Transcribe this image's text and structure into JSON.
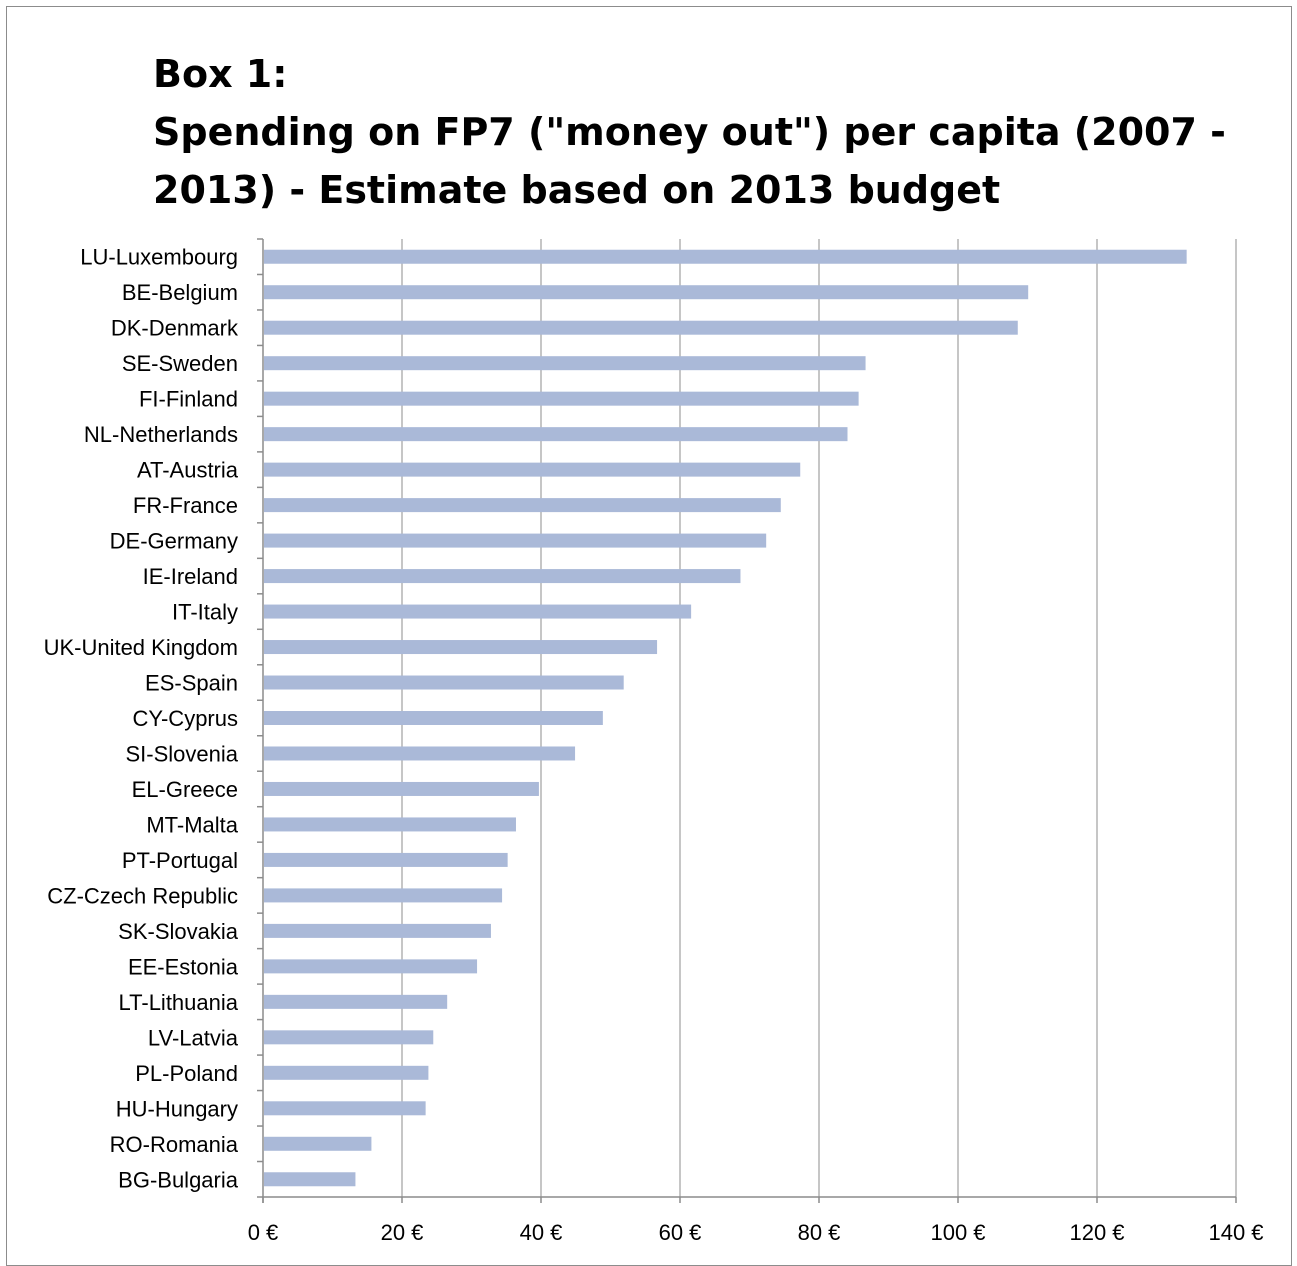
{
  "chart_data": {
    "type": "bar",
    "orientation": "horizontal",
    "title_lines": [
      "Box 1:",
      "Spending on FP7 (\"money out\") per capita (2007 -",
      "2013) - Estimate based on 2013 budget"
    ],
    "categories": [
      "LU-Luxembourg",
      "BE-Belgium",
      "DK-Denmark",
      "SE-Sweden",
      "FI-Finland",
      "NL-Netherlands",
      "AT-Austria",
      "FR-France",
      "DE-Germany",
      "IE-Ireland",
      "IT-Italy",
      "UK-United Kingdom",
      "ES-Spain",
      "CY-Cyprus",
      "SI-Slovenia",
      "EL-Greece",
      "MT-Malta",
      "PT-Portugal",
      "CZ-Czech Republic",
      "SK-Slovakia",
      "EE-Estonia",
      "LT-Lithuania",
      "LV-Latvia",
      "PL-Poland",
      "HU-Hungary",
      "RO-Romania",
      "BG-Bulgaria"
    ],
    "values": [
      132.9,
      110.1,
      108.6,
      86.7,
      85.7,
      84.1,
      77.3,
      74.5,
      72.4,
      68.7,
      61.6,
      56.7,
      51.9,
      48.9,
      44.9,
      39.7,
      36.4,
      35.2,
      34.4,
      32.8,
      30.8,
      26.5,
      24.5,
      23.8,
      23.4,
      15.6,
      13.3
    ],
    "xlim": [
      0,
      140
    ],
    "x_ticks": [
      0,
      20,
      40,
      60,
      80,
      100,
      120,
      140
    ],
    "x_tick_labels": [
      "0 €",
      "20 €",
      "40 €",
      "60 €",
      "80 €",
      "100 €",
      "120 €",
      "140 €"
    ],
    "xlabel": "",
    "ylabel": "",
    "grid": "vertical",
    "legend": "none",
    "colors": {
      "bar": "#aab9d8",
      "grid": "#8c8c8c",
      "axis": "#8c8c8c",
      "frame": "#8c8c8c"
    }
  }
}
